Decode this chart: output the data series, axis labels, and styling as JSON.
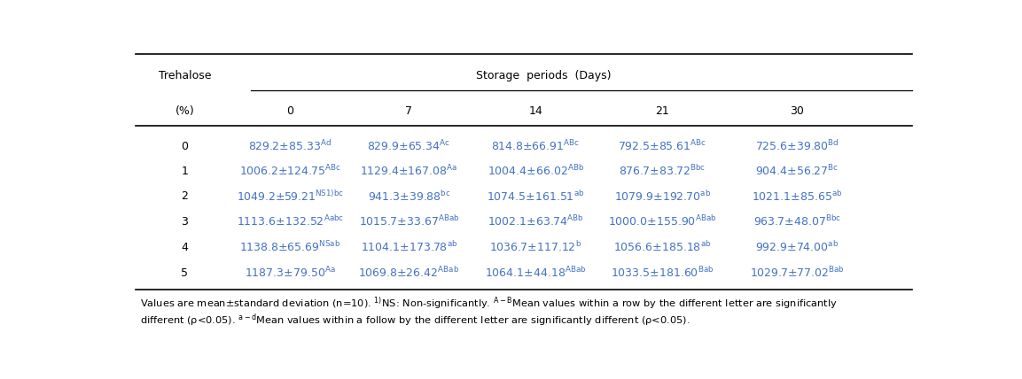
{
  "columns": [
    "Trehalose\n(%)",
    "0",
    "7",
    "14",
    "21",
    "30"
  ],
  "rows": [
    [
      "0",
      "829.2±85.33",
      "829.9±65.34",
      "814.8±66.91",
      "792.5±85.61",
      "725.6±39.80"
    ],
    [
      "1",
      "1006.2±124.75",
      "1129.4±167.08",
      "1004.4±66.02",
      "876.7±83.72",
      "904.4±56.27"
    ],
    [
      "2",
      "1049.2±59.21",
      "941.3±39.88",
      "1074.5±161.51",
      "1079.9±192.70",
      "1021.1±85.65"
    ],
    [
      "3",
      "1113.6±132.52",
      "1015.7±33.67",
      "1002.1±63.74",
      "1000.0±155.90",
      "963.7±48.07"
    ],
    [
      "4",
      "1138.8±65.69",
      "1104.1±173.78",
      "1036.7±117.12",
      "1056.6±185.18",
      "992.9±74.00"
    ],
    [
      "5",
      "1187.3±79.50",
      "1069.8±26.42",
      "1064.1±44.18",
      "1033.5±181.60",
      "1029.7±77.02"
    ]
  ],
  "superscripts": [
    [
      "",
      "Ad",
      "Ac",
      "ABc",
      "ABc",
      "Bd"
    ],
    [
      "",
      "ABc",
      "Aa",
      "ABb",
      "Bbc",
      "Bc"
    ],
    [
      "",
      "NS1)bc",
      "bc",
      "ab",
      "ab",
      "ab"
    ],
    [
      "",
      "Aabc",
      "ABab",
      "ABb",
      "ABab",
      "Bbc"
    ],
    [
      "",
      "NSab",
      "ab",
      "b",
      "ab",
      "ab"
    ],
    [
      "",
      "Aa",
      "ABab",
      "ABab",
      "Bab",
      "Bab"
    ]
  ],
  "text_color": "#4472c4",
  "header_color": "#000000",
  "bg_color": "#ffffff",
  "font_size": 9.0,
  "super_font_size": 6.5,
  "footnote_font_size": 8.2
}
